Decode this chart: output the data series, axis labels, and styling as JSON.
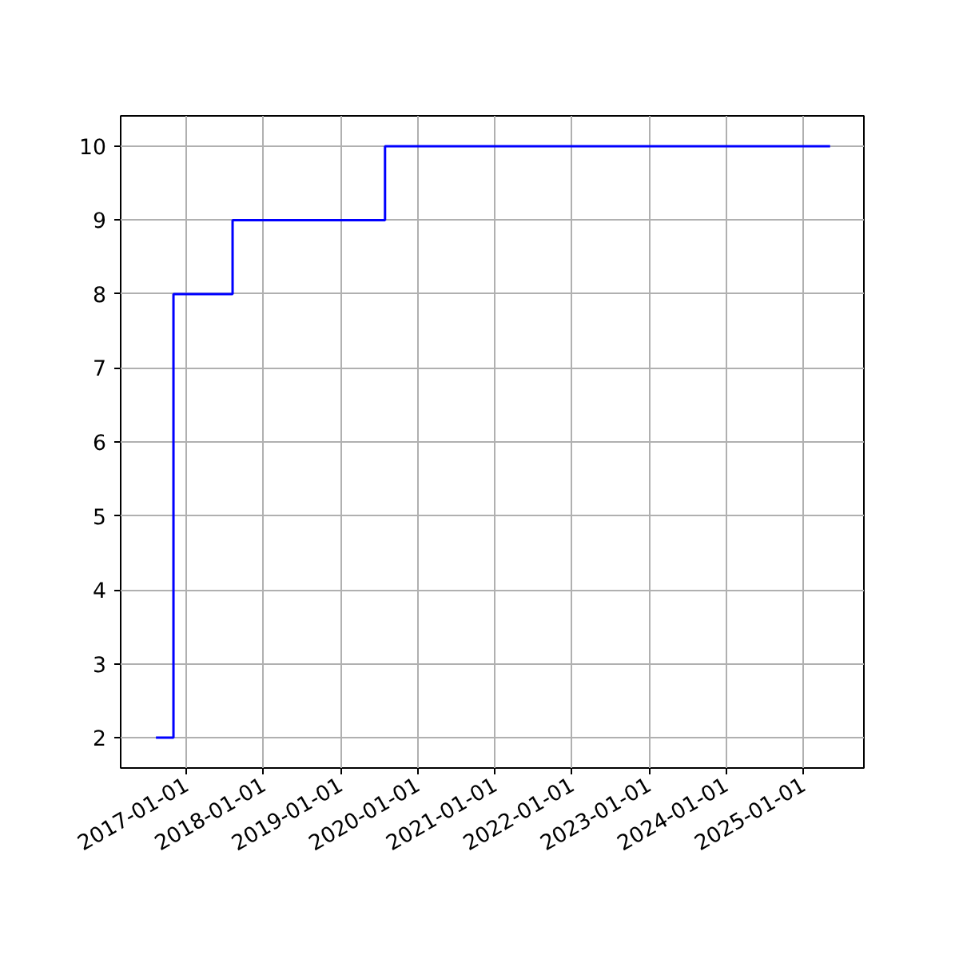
{
  "chart_data": {
    "type": "step",
    "x": [
      "2016-08-10",
      "2016-11-01",
      "2017-08-08",
      "2019-07-31",
      "2025-05-08"
    ],
    "series": [
      {
        "color": "#0000ff",
        "values": [
          2,
          8,
          9,
          10,
          10
        ]
      }
    ],
    "xlim": [
      "2016-02-25",
      "2025-10-15"
    ],
    "xticks": [
      "2017-01-01",
      "2018-01-01",
      "2019-01-01",
      "2020-01-01",
      "2021-01-01",
      "2022-01-01",
      "2023-01-01",
      "2024-01-01",
      "2025-01-01"
    ],
    "ylim": [
      1.59,
      10.41
    ],
    "yticks": [
      2,
      3,
      4,
      5,
      6,
      7,
      8,
      9,
      10
    ],
    "grid": true,
    "line_style": "solid"
  }
}
